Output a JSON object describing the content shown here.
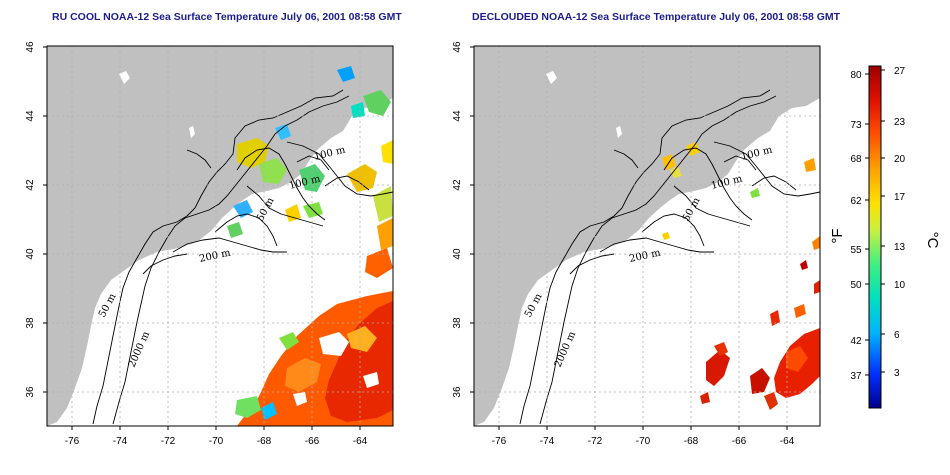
{
  "left_panel": {
    "title": "RU COOL NOAA-12 Sea Surface Temperature July 06, 2001 08:58 GMT",
    "x_ticks": [
      "-76",
      "-74",
      "-72",
      "-70",
      "-68",
      "-66",
      "-64"
    ],
    "y_ticks": [
      "46",
      "44",
      "42",
      "40",
      "38",
      "36"
    ],
    "contour_labels": [
      "100 m",
      "100 m",
      "50 m",
      "200 m",
      "50 m",
      "2000 m"
    ]
  },
  "right_panel": {
    "title": "DECLOUDED NOAA-12 Sea Surface Temperature July 06, 2001 08:58 GMT",
    "x_ticks": [
      "-76",
      "-74",
      "-72",
      "-70",
      "-68",
      "-66",
      "-64"
    ],
    "y_ticks": [
      "46",
      "44",
      "42",
      "40",
      "38",
      "36"
    ],
    "contour_labels": [
      "100 m",
      "100 m",
      "50 m",
      "200 m",
      "50 m",
      "2000 m"
    ]
  },
  "colorbar": {
    "fahrenheit_ticks": [
      "80",
      "73",
      "68",
      "62",
      "55",
      "50",
      "42",
      "37"
    ],
    "celsius_ticks": [
      "27",
      "23",
      "20",
      "17",
      "13",
      "10",
      "6",
      "3"
    ],
    "fahrenheit_unit": "°F",
    "celsius_unit": "°C",
    "colors": [
      "#00008c",
      "#0030ff",
      "#00b4ff",
      "#00e0c0",
      "#40f080",
      "#c8f040",
      "#ffe000",
      "#ffa000",
      "#ff5000",
      "#e01000",
      "#9c0000"
    ]
  },
  "map_style": {
    "land_color": "#c0c0c0",
    "ocean_color": "#ffffff",
    "grid_color": "#b0b0b0"
  }
}
